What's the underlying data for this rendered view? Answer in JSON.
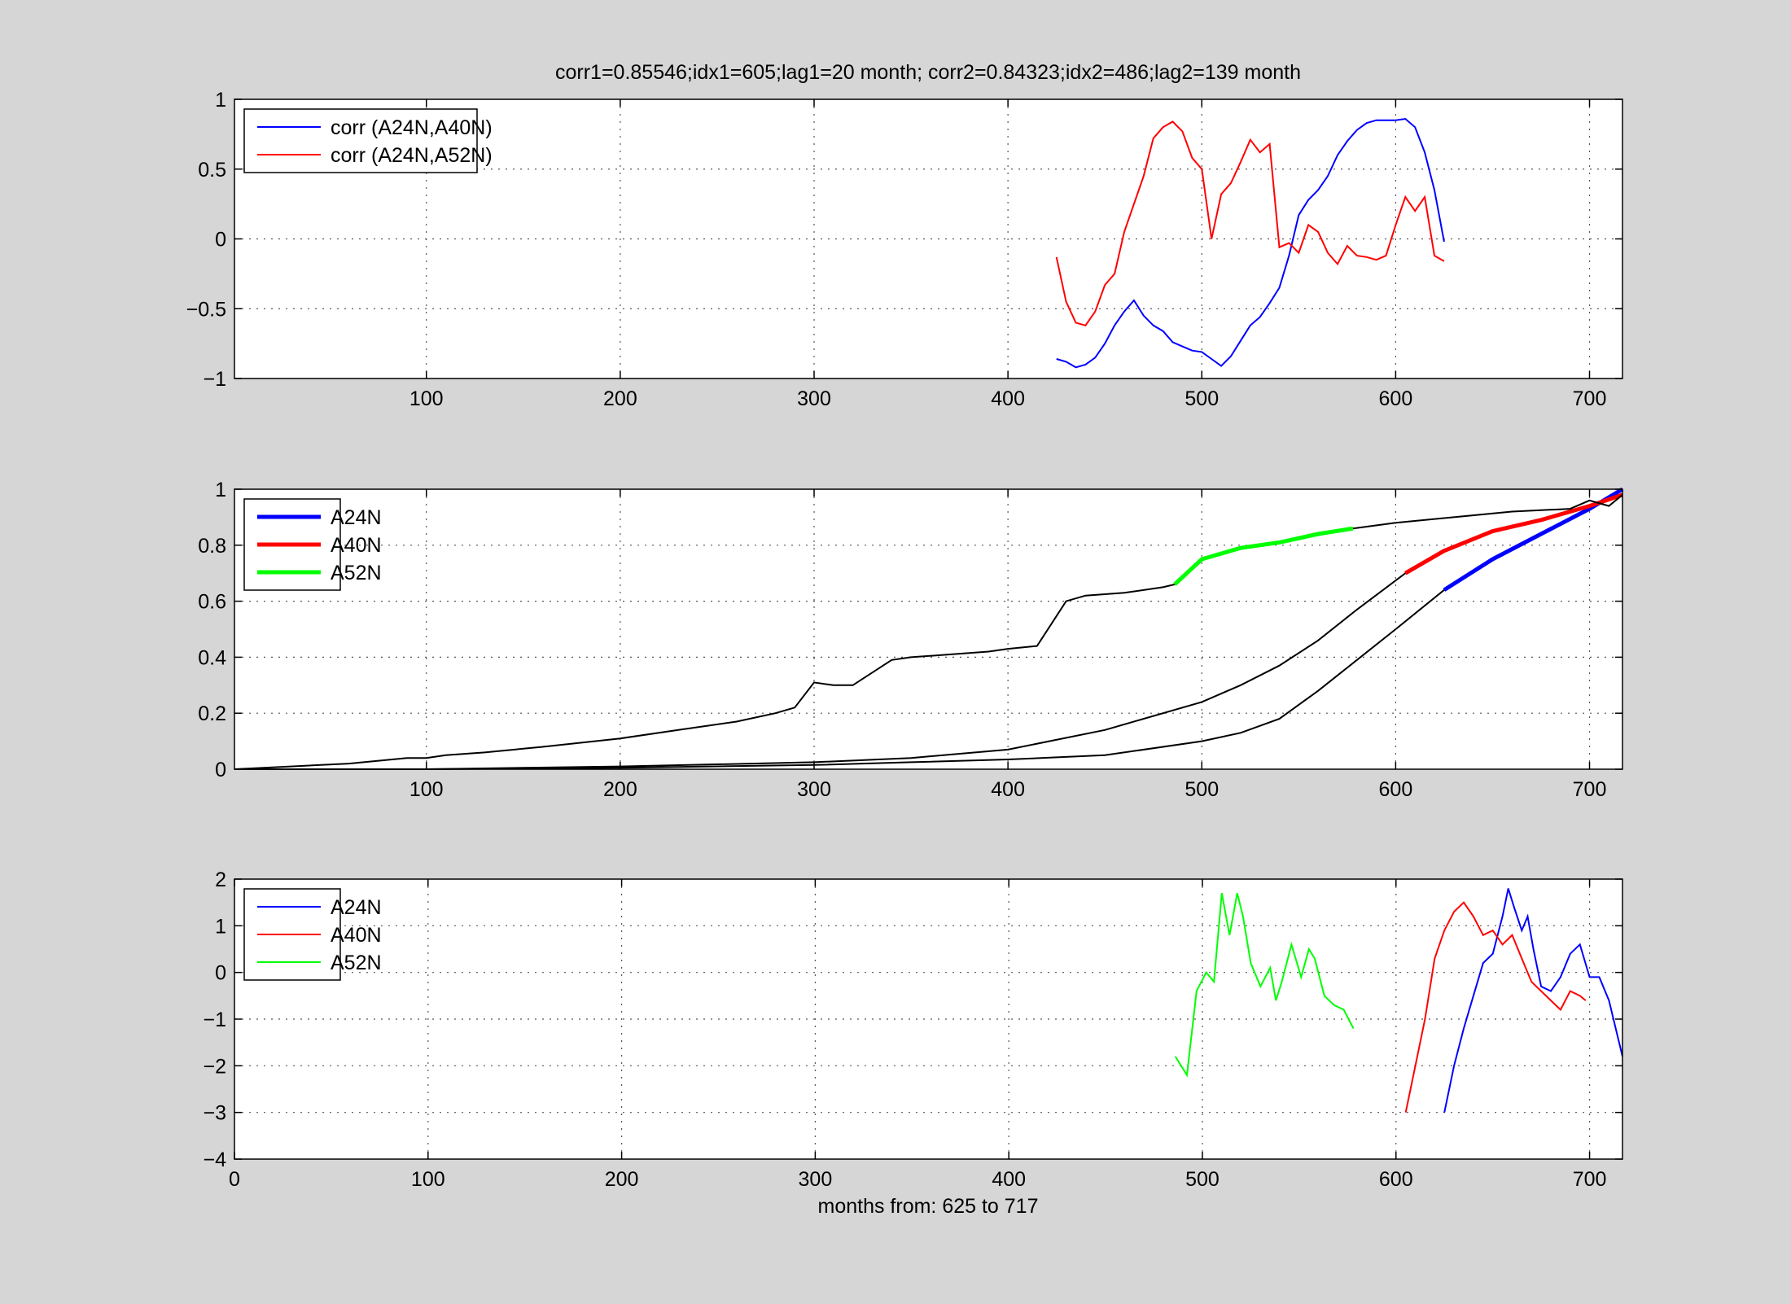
{
  "chart_data": [
    {
      "type": "line",
      "title": "corr1=0.85546;idx1=605;lag1=20 month;   corr2=0.84323;idx2=486;lag2=139 month",
      "xlabel": "",
      "ylabel": "",
      "xlim": [
        1,
        717
      ],
      "ylim": [
        -1,
        1
      ],
      "xticks": [
        100,
        200,
        300,
        400,
        500,
        600,
        700
      ],
      "yticks": [
        -1,
        -0.5,
        0,
        0.5,
        1
      ],
      "ytick_labels": [
        "−1",
        "−0.5",
        "0",
        "0.5",
        "1"
      ],
      "grid": true,
      "legend": "top-left",
      "series": [
        {
          "name": "corr (A24N,A40N)",
          "color": "#0000ff",
          "x": [
            425,
            430,
            435,
            440,
            445,
            450,
            455,
            460,
            465,
            470,
            475,
            480,
            485,
            490,
            495,
            500,
            505,
            510,
            515,
            520,
            525,
            530,
            535,
            540,
            545,
            550,
            555,
            560,
            565,
            570,
            575,
            580,
            585,
            590,
            595,
            600,
            605,
            610,
            615,
            620,
            625
          ],
          "y": [
            -0.86,
            -0.88,
            -0.92,
            -0.9,
            -0.85,
            -0.75,
            -0.62,
            -0.52,
            -0.44,
            -0.55,
            -0.62,
            -0.66,
            -0.74,
            -0.77,
            -0.8,
            -0.81,
            -0.86,
            -0.91,
            -0.84,
            -0.73,
            -0.62,
            -0.56,
            -0.46,
            -0.35,
            -0.12,
            0.17,
            0.28,
            0.35,
            0.45,
            0.6,
            0.7,
            0.78,
            0.83,
            0.85,
            0.85,
            0.85,
            0.86,
            0.8,
            0.62,
            0.35,
            -0.02
          ]
        },
        {
          "name": "corr (A24N,A52N)",
          "color": "#ff0000",
          "x": [
            425,
            430,
            435,
            440,
            445,
            450,
            455,
            460,
            465,
            470,
            475,
            480,
            485,
            490,
            495,
            500,
            505,
            510,
            515,
            520,
            525,
            530,
            535,
            540,
            545,
            550,
            555,
            560,
            565,
            570,
            575,
            580,
            585,
            590,
            595,
            600,
            605,
            610,
            615,
            620,
            625
          ],
          "y": [
            -0.13,
            -0.45,
            -0.6,
            -0.62,
            -0.52,
            -0.33,
            -0.25,
            0.05,
            0.25,
            0.45,
            0.72,
            0.8,
            0.84,
            0.77,
            0.58,
            0.5,
            0.0,
            0.32,
            0.4,
            0.55,
            0.71,
            0.62,
            0.68,
            -0.06,
            -0.03,
            -0.1,
            0.1,
            0.05,
            -0.1,
            -0.18,
            -0.05,
            -0.12,
            -0.13,
            -0.15,
            -0.12,
            0.1,
            0.3,
            0.2,
            0.3,
            -0.12,
            -0.16
          ]
        }
      ]
    },
    {
      "type": "line",
      "title": "",
      "xlabel": "",
      "ylabel": "",
      "xlim": [
        1,
        717
      ],
      "ylim": [
        0,
        1
      ],
      "xticks": [
        100,
        200,
        300,
        400,
        500,
        600,
        700
      ],
      "yticks": [
        0,
        0.2,
        0.4,
        0.6,
        0.8,
        1
      ],
      "ytick_labels": [
        "0",
        "0.2",
        "0.4",
        "0.6",
        "0.8",
        "1"
      ],
      "grid": true,
      "legend": "top-left",
      "series": [
        {
          "name": "A24N",
          "color": "#0000ff",
          "x": [
            1,
            100,
            200,
            300,
            350,
            400,
            450,
            500,
            520,
            540,
            560,
            580,
            600,
            625,
            650,
            675,
            700,
            717
          ],
          "y": [
            0.0,
            0.0,
            0.005,
            0.015,
            0.025,
            0.035,
            0.05,
            0.1,
            0.13,
            0.18,
            0.28,
            0.39,
            0.5,
            0.64,
            0.75,
            0.84,
            0.93,
            1.0
          ],
          "highlight_from": 625
        },
        {
          "name": "A40N",
          "color": "#ff0000",
          "x": [
            1,
            100,
            200,
            300,
            350,
            400,
            450,
            500,
            520,
            540,
            560,
            580,
            605,
            625,
            650,
            675,
            700,
            717
          ],
          "y": [
            0.0,
            0.0,
            0.01,
            0.025,
            0.04,
            0.07,
            0.14,
            0.24,
            0.3,
            0.37,
            0.46,
            0.57,
            0.7,
            0.78,
            0.85,
            0.89,
            0.94,
            0.98
          ],
          "highlight_from": 605
        },
        {
          "name": "A52N",
          "color": "#00ff00",
          "x": [
            1,
            30,
            60,
            90,
            100,
            110,
            130,
            160,
            200,
            230,
            260,
            280,
            290,
            300,
            310,
            320,
            340,
            350,
            370,
            390,
            400,
            415,
            430,
            440,
            460,
            480,
            486,
            500,
            520,
            540,
            560,
            578,
            600,
            630,
            660,
            690,
            700,
            710,
            717
          ],
          "y": [
            0.0,
            0.01,
            0.02,
            0.04,
            0.04,
            0.05,
            0.06,
            0.08,
            0.11,
            0.14,
            0.17,
            0.2,
            0.22,
            0.31,
            0.3,
            0.3,
            0.39,
            0.4,
            0.41,
            0.42,
            0.43,
            0.44,
            0.6,
            0.62,
            0.63,
            0.65,
            0.66,
            0.75,
            0.79,
            0.81,
            0.84,
            0.86,
            0.88,
            0.9,
            0.92,
            0.93,
            0.96,
            0.94,
            0.98
          ],
          "highlight_from": 486,
          "highlight_to": 578
        }
      ]
    },
    {
      "type": "line",
      "title": "",
      "xlabel": "months from: 625 to 717",
      "ylabel": "",
      "xlim": [
        0,
        717
      ],
      "ylim": [
        -4,
        2
      ],
      "xticks": [
        0,
        100,
        200,
        300,
        400,
        500,
        600,
        700
      ],
      "yticks": [
        -4,
        -3,
        -2,
        -1,
        0,
        1,
        2
      ],
      "ytick_labels": [
        "−4",
        "−3",
        "−2",
        "−1",
        "0",
        "1",
        "2"
      ],
      "grid": true,
      "legend": "top-left",
      "series": [
        {
          "name": "A24N",
          "color": "#0000ff",
          "x": [
            625,
            630,
            635,
            640,
            645,
            650,
            655,
            658,
            661,
            665,
            668,
            671,
            675,
            680,
            685,
            690,
            695,
            700,
            705,
            710,
            717
          ],
          "y": [
            -3.0,
            -2.0,
            -1.2,
            -0.5,
            0.2,
            0.4,
            1.2,
            1.8,
            1.4,
            0.9,
            1.2,
            0.5,
            -0.3,
            -0.4,
            -0.1,
            0.4,
            0.6,
            -0.1,
            -0.1,
            -0.6,
            -1.8
          ]
        },
        {
          "name": "A40N",
          "color": "#ff0000",
          "x": [
            605,
            610,
            615,
            620,
            625,
            630,
            635,
            640,
            645,
            650,
            655,
            660,
            665,
            670,
            675,
            680,
            685,
            690,
            695,
            698
          ],
          "y": [
            -3.0,
            -2.0,
            -1.0,
            0.3,
            0.9,
            1.3,
            1.5,
            1.2,
            0.8,
            0.9,
            0.6,
            0.8,
            0.3,
            -0.2,
            -0.4,
            -0.6,
            -0.8,
            -0.4,
            -0.5,
            -0.6
          ]
        },
        {
          "name": "A52N",
          "color": "#00ff00",
          "x": [
            486,
            492,
            497,
            502,
            506,
            510,
            514,
            518,
            521,
            525,
            530,
            535,
            538,
            541,
            546,
            551,
            555,
            558,
            563,
            568,
            573,
            578
          ],
          "y": [
            -1.8,
            -2.2,
            -0.4,
            0.0,
            -0.2,
            1.7,
            0.8,
            1.7,
            1.2,
            0.2,
            -0.3,
            0.1,
            -0.6,
            -0.2,
            0.6,
            -0.1,
            0.5,
            0.3,
            -0.5,
            -0.7,
            -0.8,
            -1.2
          ]
        }
      ]
    }
  ]
}
